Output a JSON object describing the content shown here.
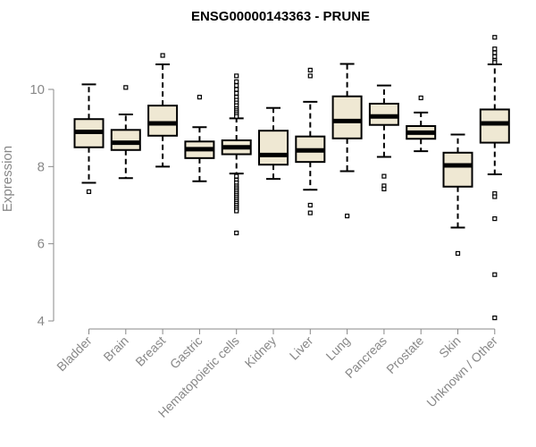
{
  "chart_data": {
    "type": "boxplot",
    "title": "ENSG00000143363 - PRUNE",
    "xlabel": "",
    "ylabel": "Expression",
    "ylim": [
      4,
      11.4
    ],
    "yticks": [
      4,
      6,
      8,
      10
    ],
    "grid": false,
    "box_fill": "#efe8d3",
    "box_stroke": "#000000",
    "axis_color": "#888888",
    "categories": [
      "Bladder",
      "Brain",
      "Breast",
      "Gastric",
      "Hematopoietic cells",
      "Kidney",
      "Liver",
      "Lung",
      "Pancreas",
      "Prostate",
      "Skin",
      "Unknown / Other"
    ],
    "boxes": [
      {
        "category": "Bladder",
        "whisker_low": 7.58,
        "q1": 8.5,
        "median": 8.9,
        "q3": 9.23,
        "whisker_high": 10.13,
        "outliers": [
          7.35
        ]
      },
      {
        "category": "Brain",
        "whisker_low": 7.7,
        "q1": 8.43,
        "median": 8.62,
        "q3": 8.95,
        "whisker_high": 9.35,
        "outliers": [
          10.05
        ]
      },
      {
        "category": "Breast",
        "whisker_low": 8.0,
        "q1": 8.8,
        "median": 9.12,
        "q3": 9.58,
        "whisker_high": 10.65,
        "outliers": [
          10.88
        ]
      },
      {
        "category": "Gastric",
        "whisker_low": 7.62,
        "q1": 8.22,
        "median": 8.45,
        "q3": 8.65,
        "whisker_high": 9.02,
        "outliers": [
          9.8
        ]
      },
      {
        "category": "Hematopoietic cells",
        "whisker_low": 7.82,
        "q1": 8.32,
        "median": 8.5,
        "q3": 8.68,
        "whisker_high": 9.25,
        "outliers": [
          10.35,
          10.2,
          10.1,
          10.0,
          9.9,
          9.8,
          9.72,
          9.65,
          9.58,
          9.5,
          9.45,
          9.4,
          9.35,
          9.3,
          7.75,
          7.65,
          7.58,
          7.5,
          7.45,
          7.4,
          7.35,
          7.3,
          7.25,
          7.2,
          7.15,
          7.1,
          7.05,
          7.0,
          6.95,
          6.9,
          6.85,
          6.28
        ]
      },
      {
        "category": "Kidney",
        "whisker_low": 7.68,
        "q1": 8.05,
        "median": 8.3,
        "q3": 8.93,
        "whisker_high": 9.52,
        "outliers": []
      },
      {
        "category": "Liver",
        "whisker_low": 7.4,
        "q1": 8.12,
        "median": 8.42,
        "q3": 8.78,
        "whisker_high": 9.68,
        "outliers": [
          10.5,
          10.35,
          7.0,
          6.8
        ]
      },
      {
        "category": "Lung",
        "whisker_low": 7.88,
        "q1": 8.73,
        "median": 9.18,
        "q3": 9.82,
        "whisker_high": 10.66,
        "outliers": [
          6.72
        ]
      },
      {
        "category": "Pancreas",
        "whisker_low": 8.25,
        "q1": 9.08,
        "median": 9.3,
        "q3": 9.63,
        "whisker_high": 10.1,
        "outliers": [
          7.75,
          7.5,
          7.42
        ]
      },
      {
        "category": "Prostate",
        "whisker_low": 8.4,
        "q1": 8.72,
        "median": 8.88,
        "q3": 9.05,
        "whisker_high": 9.4,
        "outliers": [
          9.78
        ]
      },
      {
        "category": "Skin",
        "whisker_low": 6.42,
        "q1": 7.48,
        "median": 8.03,
        "q3": 8.36,
        "whisker_high": 8.83,
        "outliers": [
          5.75
        ]
      },
      {
        "category": "Unknown / Other",
        "whisker_low": 7.8,
        "q1": 8.62,
        "median": 9.12,
        "q3": 9.48,
        "whisker_high": 10.65,
        "outliers": [
          11.35,
          11.05,
          10.95,
          10.85,
          10.75,
          10.7,
          7.3,
          7.22,
          6.65,
          5.2,
          4.08
        ]
      }
    ]
  }
}
